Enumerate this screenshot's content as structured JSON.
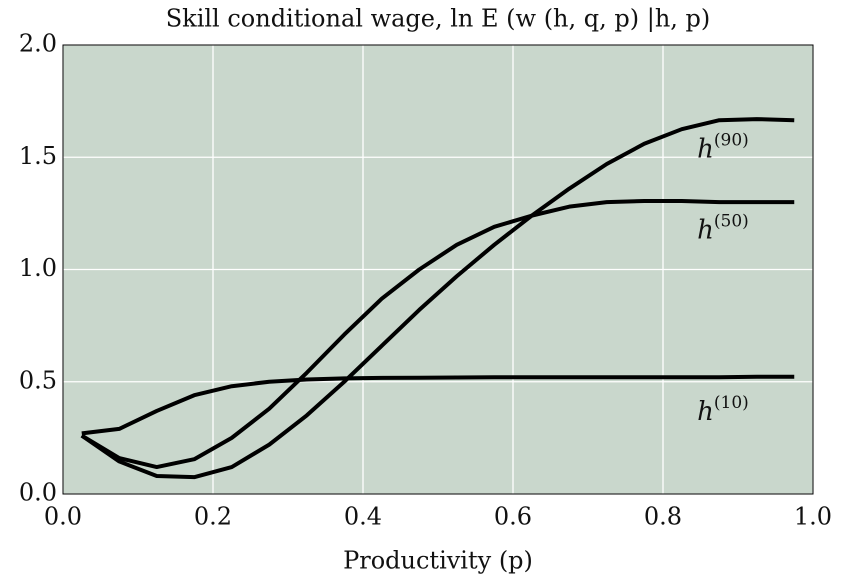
{
  "chart_data": {
    "type": "line",
    "title": "Skill conditional wage, ln E (w (h, q, p) |h, p)",
    "x_label": "Productivity (p)",
    "x": [
      0.025,
      0.075,
      0.125,
      0.175,
      0.225,
      0.275,
      0.325,
      0.375,
      0.425,
      0.475,
      0.525,
      0.575,
      0.625,
      0.675,
      0.725,
      0.775,
      0.825,
      0.875,
      0.925,
      0.975
    ],
    "series": [
      {
        "name": "h",
        "superscript": "(90)",
        "color": "#000000",
        "values": [
          0.26,
          0.145,
          0.08,
          0.075,
          0.12,
          0.22,
          0.35,
          0.5,
          0.66,
          0.82,
          0.97,
          1.11,
          1.24,
          1.36,
          1.47,
          1.56,
          1.625,
          1.665,
          1.67,
          1.665
        ]
      },
      {
        "name": "h",
        "superscript": "(50)",
        "color": "#000000",
        "values": [
          0.26,
          0.16,
          0.12,
          0.155,
          0.25,
          0.38,
          0.54,
          0.71,
          0.87,
          1.0,
          1.11,
          1.19,
          1.24,
          1.28,
          1.3,
          1.305,
          1.305,
          1.3,
          1.3,
          1.3
        ]
      },
      {
        "name": "h",
        "superscript": "(10)",
        "color": "#000000",
        "values": [
          0.27,
          0.29,
          0.37,
          0.44,
          0.48,
          0.5,
          0.51,
          0.515,
          0.517,
          0.518,
          0.519,
          0.52,
          0.52,
          0.52,
          0.52,
          0.52,
          0.52,
          0.52,
          0.522,
          0.522
        ]
      }
    ],
    "xlim": [
      0,
      1
    ],
    "ylim": [
      0,
      2
    ],
    "xticks": [
      {
        "value": 0,
        "label": "0.0"
      },
      {
        "value": 0.2,
        "label": "0.2"
      },
      {
        "value": 0.4,
        "label": "0.4"
      },
      {
        "value": 0.6,
        "label": "0.6"
      },
      {
        "value": 0.8,
        "label": "0.8"
      },
      {
        "value": 1,
        "label": "1.0"
      }
    ],
    "yticks": [
      {
        "value": 0,
        "label": "0.0"
      },
      {
        "value": 0.5,
        "label": "0.5"
      },
      {
        "value": 1,
        "label": "1.0"
      },
      {
        "value": 1.5,
        "label": "1.5"
      },
      {
        "value": 2,
        "label": "2.0"
      }
    ],
    "grid": true,
    "background": "#c9d7cc"
  }
}
